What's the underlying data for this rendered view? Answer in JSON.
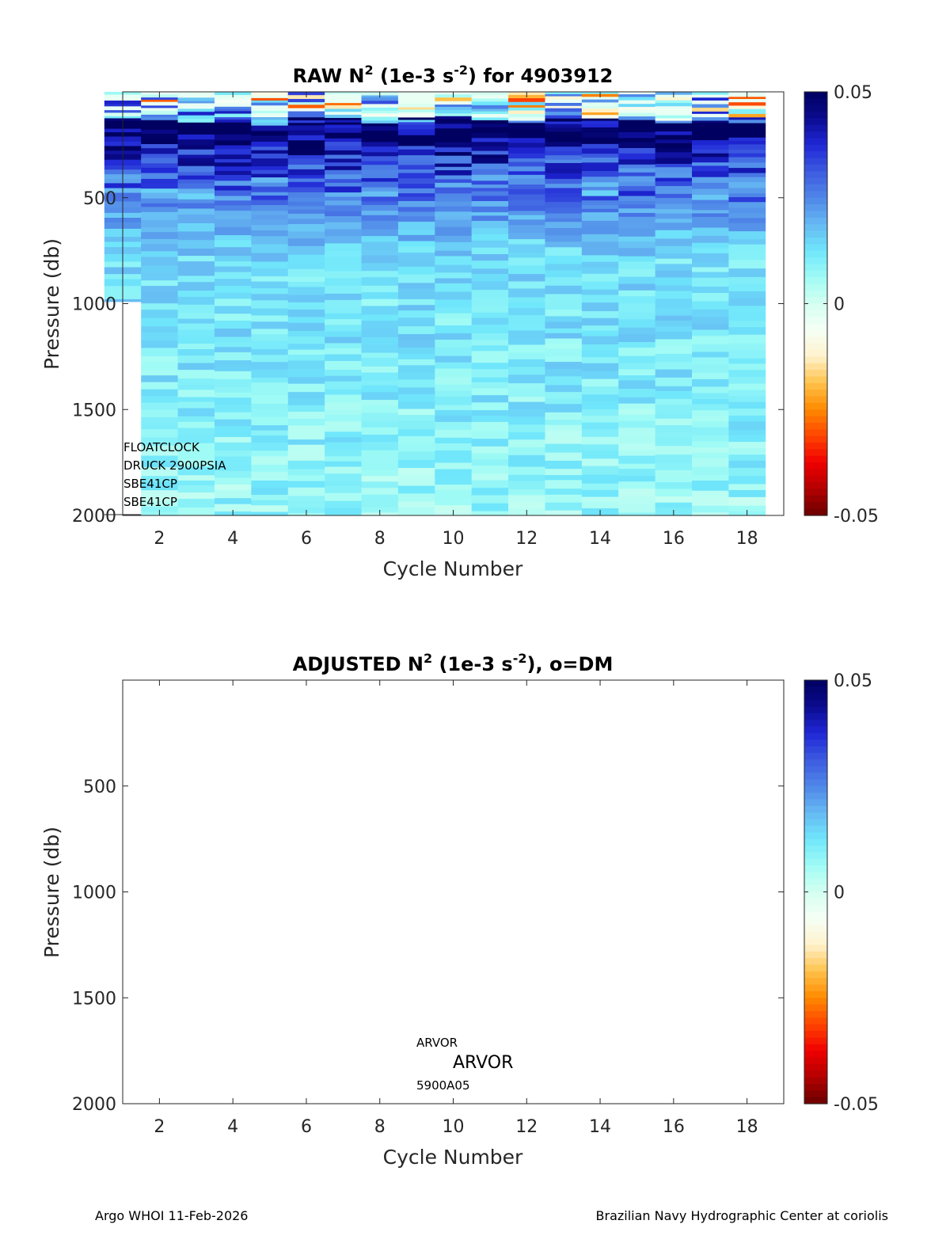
{
  "footer": {
    "left": "Argo WHOI 11-Feb-2026",
    "right": "Brazilian Navy Hydrographic Center at coriolis"
  },
  "colors": {
    "colormap": [
      "#6b0000",
      "#b30000",
      "#f00000",
      "#ff4400",
      "#ff8a00",
      "#ffc24a",
      "#fff2cc",
      "#f5fff6",
      "#d4fff0",
      "#9ffbf5",
      "#6fe6fb",
      "#66b8f2",
      "#4f86e8",
      "#3c5ae0",
      "#1f27d6",
      "#0b0b8f",
      "#000060"
    ],
    "axis": "#262626",
    "missing": "#ffffff"
  },
  "chart_data": [
    {
      "type": "heatmap",
      "title_main": "RAW N",
      "title_sup1": "2",
      "title_mid": " (1e-3 s",
      "title_sup2": "-2",
      "title_end": ") for 4903912",
      "xlabel": "Cycle Number",
      "ylabel": "Pressure (db)",
      "xlim": [
        1,
        19
      ],
      "ylim": [
        0,
        2000
      ],
      "y_reversed": true,
      "xticks": [
        2,
        4,
        6,
        8,
        10,
        12,
        14,
        16,
        18
      ],
      "yticks": [
        500,
        1000,
        1500,
        2000
      ],
      "cycles": [
        1,
        2,
        3,
        4,
        5,
        6,
        7,
        8,
        9,
        10,
        11,
        12,
        13,
        14,
        15,
        16,
        17,
        18
      ],
      "profile_max_pressure": [
        990,
        2000,
        2000,
        2000,
        2000,
        2000,
        2000,
        2000,
        2000,
        2000,
        2000,
        2000,
        2000,
        2000,
        2000,
        2000,
        2000,
        2000
      ],
      "value_profile": {
        "pressure": [
          0,
          30,
          80,
          120,
          150,
          200,
          260,
          350,
          450,
          550,
          650,
          800,
          1000,
          1300,
          1600,
          2000
        ],
        "value": [
          0.002,
          0.003,
          0.005,
          0.01,
          0.045,
          0.05,
          0.042,
          0.033,
          0.028,
          0.024,
          0.018,
          0.013,
          0.012,
          0.011,
          0.009,
          0.007
        ]
      },
      "clim": [
        -0.05,
        0.05
      ],
      "colorbar_ticks": [
        0.05,
        0,
        -0.05
      ],
      "colorbar_labels": [
        "0.05",
        "0",
        "-0.05"
      ],
      "annotations": [
        "FLOATCLOCK",
        "DRUCK 2900PSIA",
        "SBE41CP",
        "SBE41CP"
      ]
    },
    {
      "type": "heatmap",
      "title_main": "ADJUSTED N",
      "title_sup1": "2",
      "title_mid": " (1e-3 s",
      "title_sup2": "-2",
      "title_end": "), o=DM",
      "xlabel": "Cycle Number",
      "ylabel": "Pressure (db)",
      "xlim": [
        1,
        19
      ],
      "ylim": [
        0,
        2000
      ],
      "y_reversed": true,
      "xticks": [
        2,
        4,
        6,
        8,
        10,
        12,
        14,
        16,
        18
      ],
      "yticks": [
        500,
        1000,
        1500,
        2000
      ],
      "cycles": [],
      "clim": [
        -0.05,
        0.05
      ],
      "colorbar_ticks": [
        0.05,
        0,
        -0.05
      ],
      "colorbar_labels": [
        "0.05",
        "0",
        "-0.05"
      ],
      "annotations": [
        "ARVOR",
        "ARVOR",
        "5900A05"
      ]
    }
  ]
}
